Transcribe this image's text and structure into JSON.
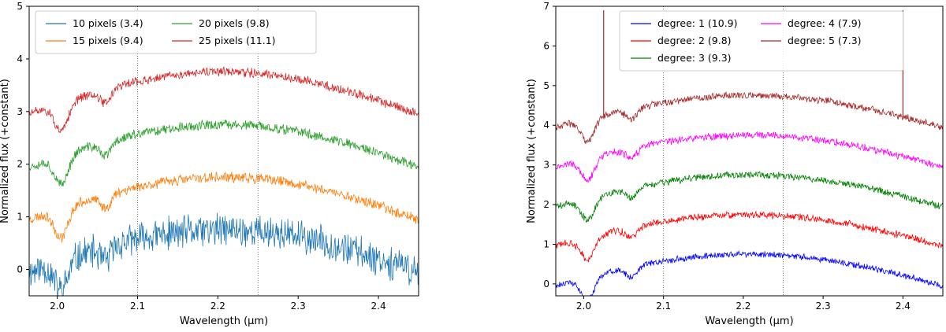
{
  "chart_data": [
    {
      "type": "line",
      "title": "",
      "xlabel": "Wavelength (μm)",
      "ylabel": "Normalized flux (+constant)",
      "xlim": [
        1.965,
        2.45
      ],
      "ylim": [
        -0.5,
        5
      ],
      "xticks": [
        2.0,
        2.1,
        2.2,
        2.3,
        2.4
      ],
      "xtick_labels": [
        "2.0",
        "2.1",
        "2.2",
        "2.3",
        "2.4"
      ],
      "yticks": [
        0,
        1,
        2,
        3,
        4,
        5
      ],
      "ytick_labels": [
        "0",
        "1",
        "2",
        "3",
        "4",
        "5"
      ],
      "vlines": [
        2.1,
        2.25
      ],
      "legend_position": "top-left",
      "series": [
        {
          "name": "10 pixels (3.4)",
          "color": "#1f77b4",
          "offset": 0,
          "noise": 0.28,
          "seed": 11
        },
        {
          "name": "15 pixels (9.4)",
          "color": "#ff7f0e",
          "offset": 1,
          "noise": 0.09,
          "seed": 23
        },
        {
          "name": "20 pixels (9.8)",
          "color": "#2ca02c",
          "offset": 2,
          "noise": 0.085,
          "seed": 37
        },
        {
          "name": "25 pixels (11.1)",
          "color": "#d62728",
          "offset": 3,
          "noise": 0.08,
          "seed": 51
        }
      ]
    },
    {
      "type": "line",
      "title": "",
      "xlabel": "Wavelength (μm)",
      "ylabel": "Normalized flux (+constant)",
      "xlim": [
        1.965,
        2.45
      ],
      "ylim": [
        -0.3,
        7
      ],
      "xticks": [
        2.0,
        2.1,
        2.2,
        2.3,
        2.4
      ],
      "xtick_labels": [
        "2.0",
        "2.1",
        "2.2",
        "2.3",
        "2.4"
      ],
      "yticks": [
        0,
        1,
        2,
        3,
        4,
        5,
        6,
        7
      ],
      "ytick_labels": [
        "0",
        "1",
        "2",
        "3",
        "4",
        "5",
        "6",
        "7"
      ],
      "vlines": [
        2.1,
        2.25
      ],
      "legend_position": "top",
      "series": [
        {
          "name": "degree: 1 (10.9)",
          "color": "#0000ff",
          "offset": 0,
          "noise": 0.07,
          "seed": 61
        },
        {
          "name": "degree: 2 (9.8)",
          "color": "#ff0000",
          "offset": 1,
          "noise": 0.08,
          "seed": 73
        },
        {
          "name": "degree: 3 (9.3)",
          "color": "#008000",
          "offset": 2,
          "noise": 0.08,
          "seed": 89
        },
        {
          "name": "degree: 4 (7.9)",
          "color": "#ff00ff",
          "offset": 3,
          "noise": 0.08,
          "seed": 97
        },
        {
          "name": "degree: 5 (7.3)",
          "color": "#a52a2a",
          "offset": 4,
          "noise": 0.08,
          "seed": 103
        }
      ]
    }
  ]
}
